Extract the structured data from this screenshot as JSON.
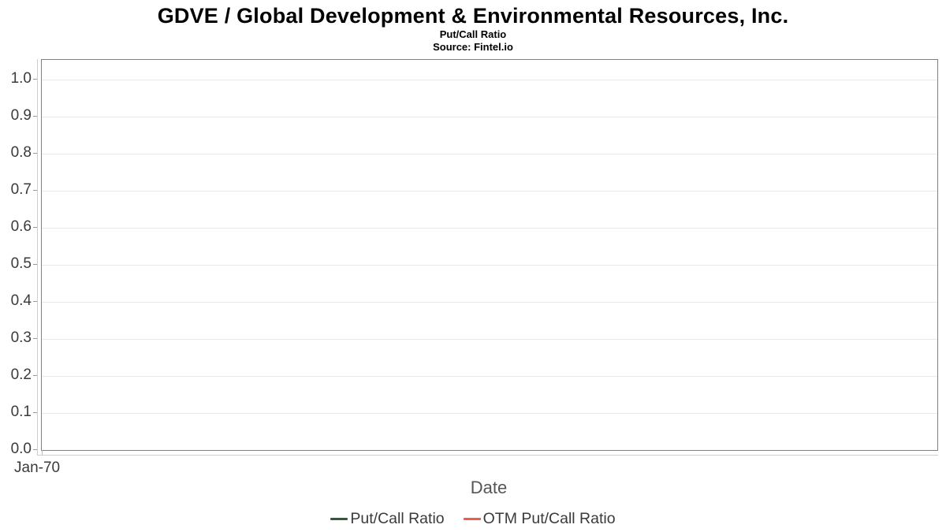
{
  "header": {
    "title": "GDVE / Global Development & Environmental Resources, Inc.",
    "subtitle": "Put/Call Ratio",
    "source": "Source: Fintel.io"
  },
  "chart_data": {
    "type": "line",
    "title": "GDVE / Global Development & Environmental Resources, Inc.",
    "subtitle": "Put/Call Ratio",
    "source": "Source: Fintel.io",
    "xlabel": "Date",
    "ylabel": "",
    "ylim": [
      0.0,
      1.05
    ],
    "ytick_labels": [
      "1.0",
      "0.9",
      "0.8",
      "0.7",
      "0.6",
      "0.5",
      "0.4",
      "0.3",
      "0.2",
      "0.1",
      "0.0"
    ],
    "xtick_labels": [
      "Jan-70"
    ],
    "grid": true,
    "legend_position": "bottom",
    "series": [
      {
        "name": "Put/Call Ratio",
        "color": "#2c5e33",
        "x": [],
        "values": []
      },
      {
        "name": "OTM Put/Call Ratio",
        "color": "#f2594f",
        "x": [],
        "values": []
      }
    ],
    "colors": {
      "plot_border": "#808080",
      "gridline": "#e9e9e9",
      "axis_line": "#cccccc",
      "tick": "#999999",
      "tick_label": "#3a3a3a",
      "axis_title": "#555555",
      "legend_text": "#3a3a3a",
      "title_text": "#000000"
    }
  }
}
